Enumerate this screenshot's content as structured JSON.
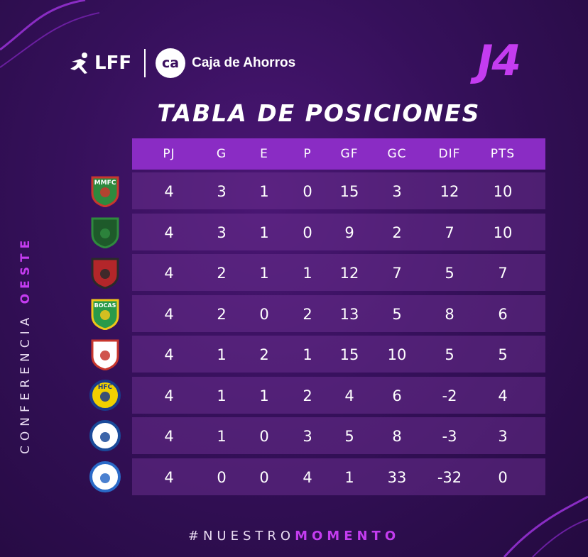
{
  "header": {
    "lff": "LFF",
    "sponsor_badge": "ca",
    "sponsor": "Caja de Ahorros",
    "round": "J4"
  },
  "title": "TABLA DE POSICIONES",
  "side_label": {
    "prefix": "CONFERENCIA ",
    "highlight": "OESTE"
  },
  "columns": [
    "PJ",
    "G",
    "E",
    "P",
    "GF",
    "GC",
    "DIF",
    "PTS"
  ],
  "rows": [
    {
      "badge_text": "MMFC",
      "colors": [
        "#2e8a3e",
        "#c8372e"
      ],
      "values": [
        "4",
        "3",
        "1",
        "0",
        "15",
        "3",
        "12",
        "10"
      ]
    },
    {
      "badge_text": "",
      "colors": [
        "#1e5a2a",
        "#2f8a3e"
      ],
      "values": [
        "4",
        "3",
        "1",
        "0",
        "9",
        "2",
        "7",
        "10"
      ]
    },
    {
      "badge_text": "",
      "colors": [
        "#b3262a",
        "#2a2a2a"
      ],
      "values": [
        "4",
        "2",
        "1",
        "1",
        "12",
        "7",
        "5",
        "7"
      ]
    },
    {
      "badge_text": "BOCAS",
      "colors": [
        "#2a9a4a",
        "#f0c51a"
      ],
      "values": [
        "4",
        "2",
        "0",
        "2",
        "13",
        "5",
        "8",
        "6"
      ]
    },
    {
      "badge_text": "",
      "colors": [
        "#ffffff",
        "#c8372e"
      ],
      "values": [
        "4",
        "1",
        "2",
        "1",
        "15",
        "10",
        "5",
        "5"
      ]
    },
    {
      "badge_text": "HFC",
      "colors": [
        "#f0d000",
        "#1a3a8a"
      ],
      "values": [
        "4",
        "1",
        "1",
        "2",
        "4",
        "6",
        "-2",
        "4"
      ]
    },
    {
      "badge_text": "",
      "colors": [
        "#ffffff",
        "#1a4a9a"
      ],
      "values": [
        "4",
        "1",
        "0",
        "3",
        "5",
        "8",
        "-3",
        "3"
      ]
    },
    {
      "badge_text": "",
      "colors": [
        "#ffffff",
        "#2a6ac8"
      ],
      "values": [
        "4",
        "0",
        "0",
        "4",
        "1",
        "33",
        "-32",
        "0"
      ]
    }
  ],
  "footer": {
    "prefix": "#NUESTRO",
    "highlight": "MOMENTO"
  }
}
